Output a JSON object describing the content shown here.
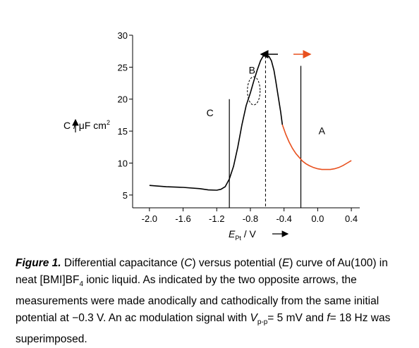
{
  "chart_data": {
    "type": "line",
    "title": "",
    "xlabel": {
      "main": "E",
      "sub": "Pt",
      "unit": " / V"
    },
    "ylabel": {
      "main": "C / μF cm",
      "sup": "2"
    },
    "xlim": [
      -2.2,
      0.5
    ],
    "ylim": [
      3,
      30
    ],
    "x_ticks": [
      -2.0,
      -1.6,
      -1.2,
      -0.8,
      -0.4,
      0.0,
      0.4
    ],
    "x_tick_labels": [
      "-2.0",
      "-1.6",
      "-1.2",
      "-0.8",
      "-0.4",
      "0.0",
      "0.4"
    ],
    "y_ticks": [
      5,
      10,
      15,
      20,
      25,
      30
    ],
    "y_tick_labels": [
      "5",
      "10",
      "15",
      "20",
      "25",
      "30"
    ],
    "vertical_lines": [
      {
        "x": -1.05,
        "style": "solid"
      },
      {
        "x": -0.62,
        "style": "dashed"
      },
      {
        "x": -0.2,
        "style": "solid"
      }
    ],
    "region_labels": [
      {
        "text": "C",
        "x": -1.28,
        "y": 17.3
      },
      {
        "text": "B",
        "x": -0.78,
        "y": 24.0
      },
      {
        "text": "A",
        "x": 0.05,
        "y": 14.5
      }
    ],
    "ellipse": {
      "x": -0.76,
      "y": 21.3
    },
    "series": [
      {
        "color": "#000000",
        "x": [
          -2.0,
          -1.8,
          -1.6,
          -1.4,
          -1.3,
          -1.2,
          -1.15,
          -1.1,
          -1.05,
          -1.0,
          -0.95,
          -0.9,
          -0.85,
          -0.8,
          -0.76,
          -0.72,
          -0.68,
          -0.65,
          -0.62,
          -0.58,
          -0.55,
          -0.52,
          -0.5,
          -0.47,
          -0.44,
          -0.42
        ],
        "y": [
          6.5,
          6.3,
          6.2,
          6.0,
          5.8,
          5.75,
          5.9,
          6.3,
          7.5,
          9.5,
          12.5,
          16.0,
          19.0,
          21.0,
          22.8,
          24.5,
          26.0,
          26.7,
          26.8,
          26.7,
          26.0,
          24.5,
          23.0,
          20.5,
          18.0,
          16.0
        ]
      },
      {
        "color": "#e8501e",
        "x": [
          -0.42,
          -0.38,
          -0.34,
          -0.3,
          -0.26,
          -0.22,
          -0.18,
          -0.14,
          -0.1,
          -0.05,
          0.0,
          0.05,
          0.1,
          0.15,
          0.2,
          0.25,
          0.3,
          0.35,
          0.4
        ],
        "y": [
          16.0,
          14.5,
          13.3,
          12.3,
          11.5,
          10.9,
          10.3,
          9.9,
          9.6,
          9.3,
          9.1,
          9.0,
          9.0,
          9.0,
          9.1,
          9.3,
          9.6,
          10.0,
          10.4
        ]
      }
    ],
    "arrows": [
      {
        "direction": "left",
        "color": "#000000"
      },
      {
        "direction": "right",
        "color": "#e8501e"
      }
    ]
  },
  "caption": {
    "fig_label": "Figure 1.",
    "text_1": " Differential capacitance (",
    "c_sym": "C",
    "text_2": ") versus potential (",
    "e_sym": "E",
    "text_3": ") curve of Au(100) in neat [BMI]BF",
    "sub_4": "4",
    "text_4": " ionic liquid. As indicated by the two opposite arrows, the measurements were made anodically and cathodically from the same initial potential at −0.3 V. An ac modulation signal with ",
    "v_sym": "V",
    "v_sub": "p-p",
    "text_5": "= 5 mV and ",
    "f_sym": "f",
    "text_6": "= 18 Hz was superimposed."
  }
}
